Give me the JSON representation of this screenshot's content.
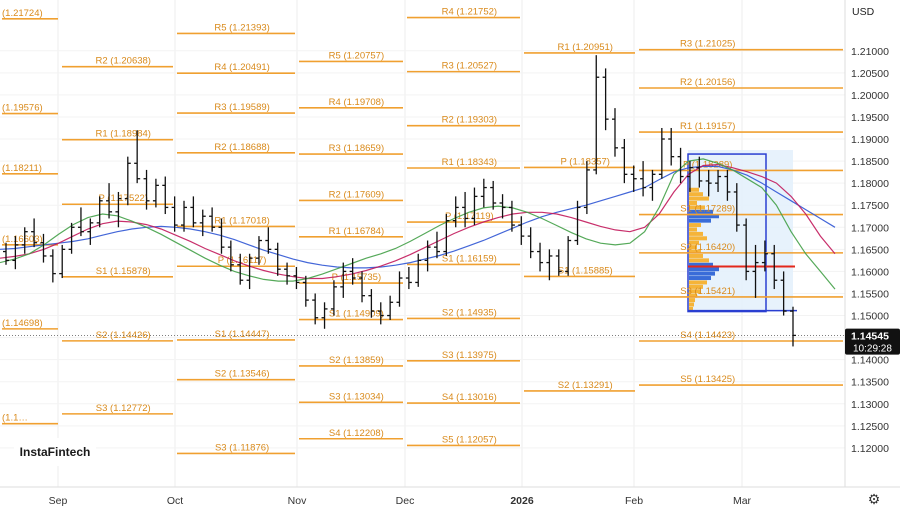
{
  "brand": "InstaFintech",
  "currency": "USD",
  "price_label": {
    "price": "1.14545",
    "time": "10:29:28"
  },
  "chart_data": {
    "type": "candlestick",
    "instrument_currency": "USD",
    "x_labels": [
      "Sep",
      "Oct",
      "Nov",
      "Dec",
      "2026",
      "Feb",
      "Mar"
    ],
    "ylim": [
      1.115,
      1.2215
    ],
    "y_ticks": [
      "1.21000",
      "1.20500",
      "1.20000",
      "1.19500",
      "1.19000",
      "1.18500",
      "1.18000",
      "1.17500",
      "1.17000",
      "1.16500",
      "1.16000",
      "1.15500",
      "1.15000",
      "1.14500",
      "1.14000",
      "1.13500",
      "1.13000",
      "1.12500",
      "1.12000"
    ],
    "last_price": 1.14545,
    "levels": [
      {
        "label": "(1.21724)",
        "value": 1.21724,
        "period": 0
      },
      {
        "label": "(1.19576)",
        "value": 1.19576,
        "period": 0
      },
      {
        "label": "(1.18211)",
        "value": 1.18211,
        "period": 0
      },
      {
        "label": "(1.16603)",
        "value": 1.16603,
        "period": 0
      },
      {
        "label": "(1.14698)",
        "value": 1.14698,
        "period": 0
      },
      {
        "label": "(1.1…",
        "value": 1.1255,
        "period": 0
      },
      {
        "label": "R2 (1.20638)",
        "value": 1.20638,
        "period": 1
      },
      {
        "label": "R1 (1.18984)",
        "value": 1.18984,
        "period": 1
      },
      {
        "label": "P (1.17522)",
        "value": 1.17522,
        "period": 1
      },
      {
        "label": "S1 (1.15878)",
        "value": 1.15878,
        "period": 1
      },
      {
        "label": "S2 (1.14426)",
        "value": 1.14426,
        "period": 1
      },
      {
        "label": "S3 (1.12772)",
        "value": 1.12772,
        "period": 1
      },
      {
        "label": "R5 (1.21393)",
        "value": 1.21393,
        "period": 2
      },
      {
        "label": "R4 (1.20491)",
        "value": 1.20491,
        "period": 2
      },
      {
        "label": "R3 (1.19589)",
        "value": 1.19589,
        "period": 2
      },
      {
        "label": "R2 (1.18688)",
        "value": 1.18688,
        "period": 2
      },
      {
        "label": "R1 (1.17018)",
        "value": 1.17018,
        "period": 2
      },
      {
        "label": "P (1.16117)",
        "value": 1.16117,
        "period": 2
      },
      {
        "label": "S1 (1.14447)",
        "value": 1.14447,
        "period": 2
      },
      {
        "label": "S2 (1.13546)",
        "value": 1.13546,
        "period": 2
      },
      {
        "label": "S3 (1.11876)",
        "value": 1.11876,
        "period": 2
      },
      {
        "label": "R5 (1.20757)",
        "value": 1.20757,
        "period": 3
      },
      {
        "label": "R4 (1.19708)",
        "value": 1.19708,
        "period": 3
      },
      {
        "label": "R3 (1.18659)",
        "value": 1.18659,
        "period": 3
      },
      {
        "label": "R2 (1.17609)",
        "value": 1.17609,
        "period": 3
      },
      {
        "label": "R1 (1.16784)",
        "value": 1.16784,
        "period": 3
      },
      {
        "label": "P (1.15735)",
        "value": 1.15735,
        "period": 3
      },
      {
        "label": "S1 (1.14909)",
        "value": 1.14909,
        "period": 3
      },
      {
        "label": "S2 (1.13859)",
        "value": 1.13859,
        "period": 3
      },
      {
        "label": "S3 (1.13034)",
        "value": 1.13034,
        "period": 3
      },
      {
        "label": "S4 (1.12208)",
        "value": 1.12208,
        "period": 3
      },
      {
        "label": "R4 (1.21752)",
        "value": 1.21752,
        "period": 4
      },
      {
        "label": "R3 (1.20527)",
        "value": 1.20527,
        "period": 4
      },
      {
        "label": "R2 (1.19303)",
        "value": 1.19303,
        "period": 4
      },
      {
        "label": "R1 (1.18343)",
        "value": 1.18343,
        "period": 4
      },
      {
        "label": "P (1.17119)",
        "value": 1.17119,
        "period": 4
      },
      {
        "label": "S1 (1.16159)",
        "value": 1.16159,
        "period": 4
      },
      {
        "label": "S2 (1.14935)",
        "value": 1.14935,
        "period": 4
      },
      {
        "label": "S3 (1.13975)",
        "value": 1.13975,
        "period": 4
      },
      {
        "label": "S4 (1.13016)",
        "value": 1.13016,
        "period": 4
      },
      {
        "label": "S5 (1.12057)",
        "value": 1.12057,
        "period": 4
      },
      {
        "label": "R1 (1.20951)",
        "value": 1.20951,
        "period": 5
      },
      {
        "label": "P (1.18357)",
        "value": 1.18357,
        "period": 5
      },
      {
        "label": "S1 (1.15885)",
        "value": 1.15885,
        "period": 5
      },
      {
        "label": "S2 (1.13291)",
        "value": 1.13291,
        "period": 5
      },
      {
        "label": "R3 (1.21025)",
        "value": 1.21025,
        "period": 6
      },
      {
        "label": "R2 (1.20156)",
        "value": 1.20156,
        "period": 6
      },
      {
        "label": "R1 (1.19157)",
        "value": 1.19157,
        "period": 6
      },
      {
        "label": "P (1.18289)",
        "value": 1.18289,
        "period": 6
      },
      {
        "label": "S1 (1.17289)",
        "value": 1.17289,
        "period": 6
      },
      {
        "label": "S2 (1.16420)",
        "value": 1.1642,
        "period": 6
      },
      {
        "label": "S3 (1.15421)",
        "value": 1.15421,
        "period": 6
      },
      {
        "label": "S4 (1.14423)",
        "value": 1.14423,
        "period": 6
      },
      {
        "label": "S5 (1.13425)",
        "value": 1.13425,
        "period": 6
      }
    ],
    "ohlc": [
      [
        1.1645,
        1.1665,
        1.1615,
        1.1625
      ],
      [
        1.1625,
        1.168,
        1.1605,
        1.166
      ],
      [
        1.166,
        1.17,
        1.164,
        1.169
      ],
      [
        1.169,
        1.172,
        1.1655,
        1.1665
      ],
      [
        1.1665,
        1.1685,
        1.162,
        1.1635
      ],
      [
        1.1635,
        1.165,
        1.1575,
        1.1595
      ],
      [
        1.1595,
        1.166,
        1.1585,
        1.165
      ],
      [
        1.165,
        1.171,
        1.164,
        1.17
      ],
      [
        1.17,
        1.1745,
        1.168,
        1.169
      ],
      [
        1.169,
        1.172,
        1.166,
        1.171
      ],
      [
        1.171,
        1.177,
        1.17,
        1.176
      ],
      [
        1.176,
        1.18,
        1.172,
        1.1735
      ],
      [
        1.1735,
        1.178,
        1.17,
        1.1765
      ],
      [
        1.1765,
        1.186,
        1.175,
        1.1845
      ],
      [
        1.1845,
        1.192,
        1.18,
        1.181
      ],
      [
        1.181,
        1.183,
        1.174,
        1.176
      ],
      [
        1.176,
        1.181,
        1.1745,
        1.1795
      ],
      [
        1.1795,
        1.1815,
        1.173,
        1.1745
      ],
      [
        1.1745,
        1.177,
        1.169,
        1.1705
      ],
      [
        1.1705,
        1.176,
        1.169,
        1.1745
      ],
      [
        1.1745,
        1.177,
        1.17,
        1.171
      ],
      [
        1.171,
        1.174,
        1.168,
        1.1725
      ],
      [
        1.1725,
        1.1745,
        1.169,
        1.17
      ],
      [
        1.17,
        1.172,
        1.164,
        1.1655
      ],
      [
        1.1655,
        1.167,
        1.16,
        1.1615
      ],
      [
        1.1615,
        1.164,
        1.157,
        1.158
      ],
      [
        1.158,
        1.164,
        1.156,
        1.163
      ],
      [
        1.163,
        1.168,
        1.1615,
        1.167
      ],
      [
        1.167,
        1.17,
        1.164,
        1.165
      ],
      [
        1.165,
        1.1665,
        1.159,
        1.1605
      ],
      [
        1.1605,
        1.162,
        1.157,
        1.159
      ],
      [
        1.159,
        1.161,
        1.156,
        1.1575
      ],
      [
        1.1575,
        1.159,
        1.152,
        1.1535
      ],
      [
        1.1535,
        1.155,
        1.148,
        1.1495
      ],
      [
        1.1495,
        1.153,
        1.147,
        1.1515
      ],
      [
        1.1515,
        1.158,
        1.15,
        1.1565
      ],
      [
        1.1565,
        1.162,
        1.154,
        1.16
      ],
      [
        1.16,
        1.163,
        1.157,
        1.1585
      ],
      [
        1.1585,
        1.16,
        1.153,
        1.1545
      ],
      [
        1.1545,
        1.156,
        1.1495,
        1.151
      ],
      [
        1.151,
        1.153,
        1.148,
        1.15
      ],
      [
        1.15,
        1.1545,
        1.149,
        1.153
      ],
      [
        1.153,
        1.16,
        1.152,
        1.1585
      ],
      [
        1.1585,
        1.161,
        1.156,
        1.1575
      ],
      [
        1.1575,
        1.164,
        1.1565,
        1.1625
      ],
      [
        1.1625,
        1.167,
        1.16,
        1.1655
      ],
      [
        1.1655,
        1.169,
        1.163,
        1.1645
      ],
      [
        1.1645,
        1.173,
        1.1635,
        1.1715
      ],
      [
        1.1715,
        1.177,
        1.17,
        1.1745
      ],
      [
        1.1745,
        1.178,
        1.17,
        1.172
      ],
      [
        1.172,
        1.179,
        1.1705,
        1.177
      ],
      [
        1.177,
        1.181,
        1.1745,
        1.179
      ],
      [
        1.179,
        1.1805,
        1.174,
        1.1755
      ],
      [
        1.1755,
        1.1775,
        1.172,
        1.1745
      ],
      [
        1.1745,
        1.176,
        1.169,
        1.1705
      ],
      [
        1.1705,
        1.1725,
        1.166,
        1.168
      ],
      [
        1.168,
        1.17,
        1.163,
        1.1645
      ],
      [
        1.1645,
        1.1665,
        1.16,
        1.162
      ],
      [
        1.162,
        1.165,
        1.158,
        1.1635
      ],
      [
        1.1635,
        1.165,
        1.159,
        1.16
      ],
      [
        1.16,
        1.168,
        1.159,
        1.167
      ],
      [
        1.167,
        1.176,
        1.166,
        1.1745
      ],
      [
        1.1745,
        1.185,
        1.173,
        1.183
      ],
      [
        1.183,
        1.209,
        1.182,
        1.204
      ],
      [
        1.204,
        1.206,
        1.192,
        1.1945
      ],
      [
        1.1945,
        1.197,
        1.186,
        1.188
      ],
      [
        1.188,
        1.19,
        1.18,
        1.182
      ],
      [
        1.182,
        1.184,
        1.178,
        1.181
      ],
      [
        1.181,
        1.185,
        1.177,
        1.179
      ],
      [
        1.179,
        1.183,
        1.176,
        1.182
      ],
      [
        1.182,
        1.1925,
        1.181,
        1.19
      ],
      [
        1.19,
        1.1925,
        1.184,
        1.186
      ],
      [
        1.186,
        1.188,
        1.18,
        1.1815
      ],
      [
        1.1815,
        1.185,
        1.178,
        1.1835
      ],
      [
        1.1835,
        1.186,
        1.179,
        1.1805
      ],
      [
        1.1805,
        1.183,
        1.177,
        1.18
      ],
      [
        1.18,
        1.183,
        1.178,
        1.1815
      ],
      [
        1.1815,
        1.183,
        1.176,
        1.178
      ],
      [
        1.178,
        1.18,
        1.169,
        1.1705
      ],
      [
        1.1705,
        1.172,
        1.158,
        1.16
      ],
      [
        1.16,
        1.166,
        1.154,
        1.162
      ],
      [
        1.162,
        1.167,
        1.16,
        1.164
      ],
      [
        1.164,
        1.166,
        1.156,
        1.158
      ],
      [
        1.158,
        1.16,
        1.15,
        1.151
      ],
      [
        1.151,
        1.152,
        1.143,
        1.1455
      ]
    ],
    "moving_averages": [
      {
        "color": "#2f55d4",
        "values": [
          1.165,
          1.1652,
          1.1656,
          1.166,
          1.1664,
          1.1668,
          1.1674,
          1.1682,
          1.169,
          1.1696,
          1.17,
          1.1702,
          1.17,
          1.1696,
          1.169,
          1.1682,
          1.1672,
          1.166,
          1.1648,
          1.1638,
          1.1628,
          1.162,
          1.1614,
          1.161,
          1.1608,
          1.1608,
          1.161,
          1.1614,
          1.162,
          1.1628,
          1.1636,
          1.1646,
          1.1658,
          1.167,
          1.1684,
          1.1698,
          1.1712,
          1.1724,
          1.1734,
          1.1742,
          1.175,
          1.176,
          1.177,
          1.178,
          1.179,
          1.1808,
          1.1825,
          1.1835,
          1.1838,
          1.1838,
          1.183,
          1.1818,
          1.18,
          1.178,
          1.176,
          1.174,
          1.172,
          1.17
        ]
      },
      {
        "color": "#c2185b",
        "values": [
          1.163,
          1.1634,
          1.164,
          1.165,
          1.1664,
          1.168,
          1.1696,
          1.1708,
          1.1714,
          1.1712,
          1.1706,
          1.1696,
          1.1682,
          1.1668,
          1.1652,
          1.1638,
          1.1624,
          1.1612,
          1.1602,
          1.1594,
          1.1588,
          1.1584,
          1.1584,
          1.1588,
          1.1594,
          1.1602,
          1.1612,
          1.1624,
          1.1638,
          1.1654,
          1.167,
          1.1686,
          1.17,
          1.1712,
          1.1722,
          1.173,
          1.1734,
          1.1734,
          1.173,
          1.1722,
          1.1712,
          1.1702,
          1.1694,
          1.169,
          1.17,
          1.173,
          1.178,
          1.182,
          1.184,
          1.1842,
          1.1835,
          1.1826,
          1.1815,
          1.18,
          1.177,
          1.173,
          1.168,
          1.164
        ]
      },
      {
        "color": "#43a047",
        "values": [
          1.162,
          1.1628,
          1.164,
          1.166,
          1.1684,
          1.1706,
          1.1722,
          1.173,
          1.1726,
          1.1714,
          1.17,
          1.1684,
          1.1666,
          1.1648,
          1.163,
          1.1614,
          1.16,
          1.159,
          1.1582,
          1.1578,
          1.1578,
          1.1584,
          1.1594,
          1.1606,
          1.1618,
          1.163,
          1.164,
          1.1652,
          1.1668,
          1.1686,
          1.1704,
          1.172,
          1.1734,
          1.1744,
          1.1748,
          1.1744,
          1.1734,
          1.172,
          1.1704,
          1.1688,
          1.1674,
          1.1664,
          1.166,
          1.1664,
          1.169,
          1.1745,
          1.182,
          1.185,
          1.1855,
          1.1845,
          1.183,
          1.181,
          1.179,
          1.175,
          1.169,
          1.164,
          1.16,
          1.156
        ]
      }
    ],
    "volume_profile": {
      "poc": 1.1611,
      "box_top": 1.1875,
      "box_bottom": 1.1509,
      "value_area_high": 1.1832
    }
  }
}
